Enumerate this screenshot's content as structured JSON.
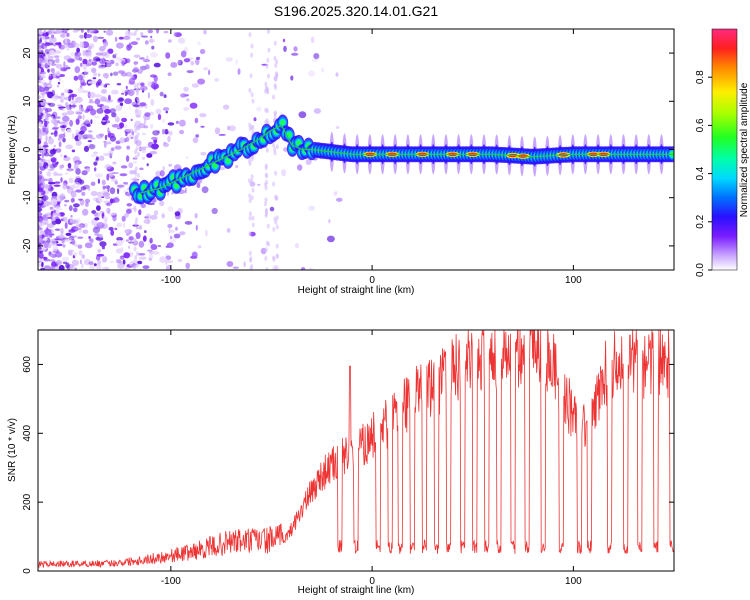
{
  "title": "S196.2025.320.14.01.G21",
  "colors": {
    "snr_line": "#ee3333",
    "ridge": "#22cc44",
    "background": "#ffffff",
    "axis": "#000000"
  },
  "colorbar": {
    "label": "Normalized spectral amplitude",
    "ticks": [
      "0.0",
      "0.2",
      "0.4",
      "0.6",
      "0.8"
    ],
    "tick_values": [
      0.0,
      0.2,
      0.4,
      0.6,
      0.8
    ],
    "range": [
      0,
      1
    ]
  },
  "chart_data": [
    {
      "type": "heatmap",
      "title": "S196.2025.320.14.01.G21",
      "xlabel": "Height of straight line (km)",
      "ylabel": "Frequency (Hz)",
      "xlim": [
        -166,
        150
      ],
      "ylim": [
        -25,
        25
      ],
      "x_ticks": [
        -100,
        0,
        100
      ],
      "x_tick_labels": [
        "-100",
        "0",
        "100"
      ],
      "y_ticks": [
        -20,
        -10,
        0,
        10,
        20
      ],
      "y_tick_labels": [
        "-20",
        "-10",
        "0",
        "10",
        "20"
      ],
      "ridge": {
        "x": [
          -115,
          -105,
          -95,
          -85,
          -75,
          -65,
          -57,
          -50,
          -45,
          -40,
          -35,
          -30,
          -20,
          -10,
          0,
          20,
          40,
          60,
          80,
          100,
          120,
          150
        ],
        "y": [
          -9,
          -8,
          -6,
          -4,
          -2,
          0,
          2,
          4,
          5,
          1,
          0,
          0,
          -0.5,
          -1,
          -1,
          -1,
          -1,
          -1,
          -1.5,
          -1,
          -1,
          -1
        ]
      },
      "hot_spots_x": [
        -1,
        10,
        25,
        40,
        50,
        70,
        75,
        95,
        110,
        115
      ]
    },
    {
      "type": "line",
      "xlabel": "Height of straight line (km)",
      "ylabel": "SNR (10 * v/v)",
      "xlim": [
        -166,
        150
      ],
      "ylim": [
        0,
        700
      ],
      "x_ticks": [
        -100,
        0,
        100
      ],
      "x_tick_labels": [
        "-100",
        "0",
        "100"
      ],
      "y_ticks": [
        0,
        200,
        400,
        600
      ],
      "y_tick_labels": [
        "0",
        "200",
        "400",
        "600"
      ],
      "envelope": {
        "x": [
          -166,
          -130,
          -110,
          -90,
          -70,
          -50,
          -42,
          -35,
          -25,
          -15,
          -5,
          5,
          15,
          25,
          35,
          45,
          55,
          65,
          75,
          82,
          90,
          100,
          108,
          115,
          125,
          135,
          145,
          150
        ],
        "y": [
          20,
          22,
          35,
          55,
          85,
          90,
          100,
          180,
          280,
          330,
          360,
          420,
          470,
          520,
          560,
          600,
          630,
          640,
          650,
          680,
          600,
          450,
          420,
          560,
          630,
          610,
          620,
          600
        ]
      },
      "dips_x": [
        -16,
        -8,
        3,
        9,
        14,
        20,
        26,
        32,
        38,
        45,
        51,
        57,
        63,
        70,
        77,
        85,
        94,
        103,
        108,
        118,
        126,
        133,
        141,
        149
      ],
      "dip_level": 70,
      "spike": {
        "x": -11,
        "y": 595
      }
    }
  ]
}
